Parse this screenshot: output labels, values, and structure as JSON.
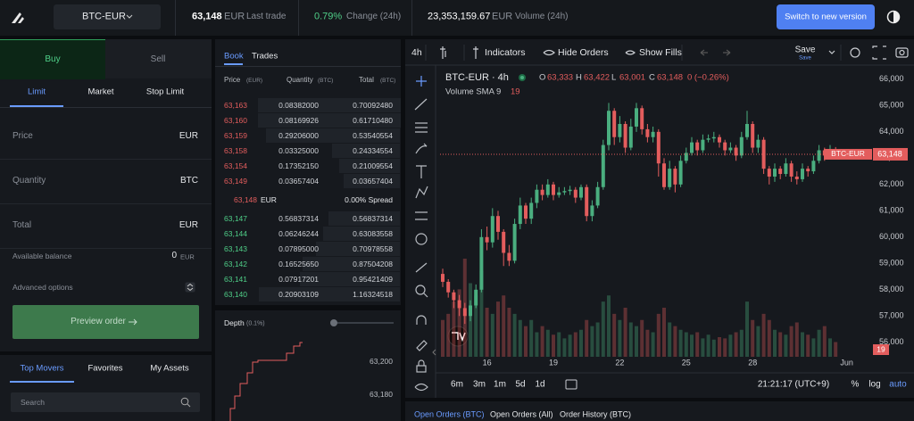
{
  "header": {
    "pair": "BTC-EUR",
    "last_trade_price": "63,148",
    "last_trade_currency": "EUR",
    "last_trade_label": "Last trade",
    "change": "0.79%",
    "change_label": "Change (24h)",
    "volume": "23,353,159.67",
    "volume_currency": "EUR",
    "volume_label": "Volume (24h)",
    "switch_button": "Switch to new version"
  },
  "order_form": {
    "sides": [
      "Buy",
      "Sell"
    ],
    "order_types": [
      "Limit",
      "Market",
      "Stop Limit"
    ],
    "fields": [
      {
        "label": "Price",
        "unit": "EUR"
      },
      {
        "label": "Quantity",
        "unit": "BTC"
      },
      {
        "label": "Total",
        "unit": "EUR"
      }
    ],
    "available_balance": {
      "label": "Available balance",
      "value": "0",
      "unit": "EUR"
    },
    "advanced_options": "Advanced options",
    "preview_button": "Preview order"
  },
  "markets": {
    "tabs": [
      "Top Movers",
      "Favorites",
      "My Assets"
    ],
    "search_placeholder": "Search"
  },
  "order_book": {
    "tabs": [
      "Book",
      "Trades"
    ],
    "columns": [
      {
        "label": "Price",
        "unit": "(EUR)"
      },
      {
        "label": "Quantity",
        "unit": "(BTC)"
      },
      {
        "label": "Total",
        "unit": "(BTC)"
      }
    ],
    "asks": [
      [
        "63,163",
        "0.08382000",
        "0.70092480"
      ],
      [
        "63,160",
        "0.08169926",
        "0.61710480"
      ],
      [
        "63,159",
        "0.29206000",
        "0.53540554"
      ],
      [
        "63,158",
        "0.03325000",
        "0.24334554"
      ],
      [
        "63,154",
        "0.17352150",
        "0.21009554"
      ],
      [
        "63,149",
        "0.03657404",
        "0.03657404"
      ]
    ],
    "spread": {
      "price": "63,148",
      "currency": "EUR",
      "value": "0.00% Spread"
    },
    "bids": [
      [
        "63,147",
        "0.56837314",
        "0.56837314"
      ],
      [
        "63,144",
        "0.06246244",
        "0.63083558"
      ],
      [
        "63,143",
        "0.07895000",
        "0.70978558"
      ],
      [
        "63,142",
        "0.16525650",
        "0.87504208"
      ],
      [
        "63,141",
        "0.07917201",
        "0.95421409"
      ],
      [
        "63,140",
        "0.20903109",
        "1.16324518"
      ]
    ]
  },
  "depth": {
    "title": "Depth",
    "subtitle": "(0.1%)",
    "price_labels": [
      "63,200",
      "63,180"
    ]
  },
  "chart_toolbar": {
    "interval": "4h",
    "indicators": "Indicators",
    "hide_orders": "Hide Orders",
    "show_fills": "Show Fills",
    "save": "Save",
    "save_sub": "Save"
  },
  "chart_data": {
    "type": "candlestick",
    "title": "BTC-EUR · 4h",
    "ohlc_legend": [
      {
        "label": "O",
        "value": "63,333"
      },
      {
        "label": "H",
        "value": "63,422"
      },
      {
        "label": "L",
        "value": "63,001"
      },
      {
        "label": "C",
        "value": "63,148"
      }
    ],
    "legend_change": "0 (−0.26%)",
    "volume_indicator": {
      "name": "Volume SMA 9",
      "value": "19"
    },
    "price_tag": {
      "name": "BTC-EUR",
      "value": "63,148"
    },
    "up_color": "#4aae7f",
    "down_color": "#e35d5d",
    "grid": false,
    "categories": [
      null,
      null,
      null,
      null,
      null,
      null,
      null,
      null,
      "16",
      null,
      null,
      null,
      null,
      null,
      null,
      null,
      null,
      null,
      null,
      null,
      "19",
      null,
      null,
      null,
      null,
      null,
      null,
      null,
      null,
      null,
      null,
      null,
      "22",
      null,
      null,
      null,
      null,
      null,
      null,
      null,
      null,
      null,
      null,
      null,
      "25",
      null,
      null,
      null,
      null,
      null,
      null,
      null,
      null,
      null,
      null,
      null,
      "28",
      null,
      null,
      null,
      null,
      null,
      null,
      null,
      null,
      null,
      null,
      null,
      null,
      null,
      null,
      null,
      null,
      "Jun"
    ],
    "open": [
      58600,
      58300,
      57900,
      57600,
      57300,
      57000,
      57400,
      58000,
      60000,
      59800,
      60800,
      60200,
      59400,
      59100,
      60500,
      61200,
      60700,
      61300,
      61800,
      61600,
      62000,
      61600,
      61700,
      61750,
      61800,
      61500,
      61900,
      60800,
      61200,
      61900,
      63500,
      64800,
      63800,
      64300,
      63400,
      64200,
      64900,
      64100,
      63800,
      64000,
      62800,
      61900,
      62600,
      62000,
      62900,
      63200,
      63600,
      63300,
      63700,
      63750,
      63800,
      63600,
      63300,
      63400,
      63100,
      63800,
      64300,
      63400,
      63700,
      62600,
      62300,
      62600,
      62400,
      62800,
      62300,
      62200,
      62600,
      62500,
      62900,
      63300,
      63100,
      63333,
      null,
      null
    ],
    "high": [
      58800,
      58400,
      58000,
      57800,
      57500,
      57600,
      58200,
      60300,
      60400,
      61100,
      61000,
      60300,
      59700,
      60700,
      61500,
      61300,
      61500,
      62000,
      62000,
      62200,
      62100,
      61900,
      61900,
      61950,
      61900,
      62000,
      62000,
      61400,
      62100,
      63700,
      65100,
      64900,
      64600,
      64400,
      64500,
      65100,
      65000,
      64300,
      64200,
      64100,
      63000,
      62900,
      62700,
      63100,
      63400,
      63800,
      63700,
      63900,
      63900,
      64000,
      63900,
      63700,
      63600,
      63500,
      64000,
      64800,
      64400,
      63900,
      63800,
      62700,
      62800,
      62700,
      63000,
      62900,
      62500,
      62800,
      62700,
      63100,
      63500,
      63400,
      63500,
      63422,
      null,
      null
    ],
    "low": [
      58100,
      57700,
      57300,
      57000,
      56700,
      56800,
      57300,
      57900,
      59500,
      59600,
      59900,
      58900,
      58900,
      59000,
      60300,
      60500,
      60500,
      61100,
      61400,
      61500,
      61400,
      61500,
      61600,
      61600,
      61300,
      61400,
      60600,
      60600,
      61100,
      61800,
      63300,
      63500,
      63600,
      63200,
      63300,
      64000,
      63900,
      63600,
      63600,
      62300,
      61800,
      61800,
      61700,
      61900,
      62800,
      63100,
      63100,
      63200,
      63600,
      63600,
      63400,
      63100,
      63200,
      62900,
      63000,
      63700,
      63200,
      63200,
      62400,
      62000,
      62100,
      62200,
      62300,
      62100,
      62000,
      62100,
      62300,
      62400,
      62800,
      62900,
      63000,
      63001,
      null,
      null
    ],
    "close": [
      58300,
      57900,
      57600,
      57300,
      57000,
      57400,
      58000,
      60000,
      59800,
      60800,
      60200,
      59400,
      59100,
      60500,
      61200,
      60700,
      61300,
      61800,
      61600,
      62000,
      61600,
      61700,
      61750,
      61800,
      61500,
      61900,
      60800,
      61200,
      61900,
      63500,
      64800,
      63800,
      64300,
      63400,
      64200,
      64900,
      64100,
      63800,
      64000,
      62800,
      61900,
      62600,
      62000,
      62900,
      63200,
      63600,
      63300,
      63700,
      63750,
      63800,
      63600,
      63300,
      63400,
      63100,
      63800,
      64300,
      63400,
      63700,
      62600,
      62300,
      62600,
      62400,
      62800,
      62300,
      62200,
      62600,
      62500,
      62900,
      63300,
      63100,
      63300,
      63148,
      null,
      null
    ],
    "volume": [
      30,
      35,
      45,
      55,
      80,
      60,
      50,
      70,
      40,
      35,
      45,
      50,
      40,
      35,
      30,
      25,
      30,
      20,
      25,
      22,
      18,
      20,
      15,
      18,
      20,
      22,
      30,
      25,
      28,
      45,
      50,
      35,
      30,
      40,
      28,
      25,
      30,
      22,
      20,
      35,
      40,
      28,
      25,
      22,
      20,
      18,
      20,
      15,
      18,
      14,
      16,
      15,
      18,
      20,
      22,
      45,
      30,
      25,
      35,
      30,
      22,
      20,
      18,
      25,
      28,
      20,
      18,
      15,
      22,
      25,
      15,
      12,
      null,
      null
    ],
    "ylim": [
      55450,
      66300
    ],
    "yticks": [
      {
        "value": 56000,
        "label": "56,000"
      },
      {
        "value": 57000,
        "label": "57,000"
      },
      {
        "value": 58000,
        "label": "58,000"
      },
      {
        "value": 59000,
        "label": "59,000"
      },
      {
        "value": 60000,
        "label": "60,000"
      },
      {
        "value": 61000,
        "label": "61,000"
      },
      {
        "value": 62000,
        "label": "62,000"
      },
      {
        "value": 63000,
        "label": "63,000"
      },
      {
        "value": 64000,
        "label": "64,000"
      },
      {
        "value": 65000,
        "label": "65,000"
      },
      {
        "value": 66000,
        "label": "66,000"
      }
    ],
    "range_buttons": [
      "6m",
      "3m",
      "1m",
      "5d",
      "1d"
    ],
    "time": "21:21:17 (UTC+9)",
    "scale_options": [
      "%",
      "log",
      "auto"
    ]
  },
  "bottom_tabs": [
    "Open Orders (BTC)",
    "Open Orders (All)",
    "Order History (BTC)"
  ]
}
